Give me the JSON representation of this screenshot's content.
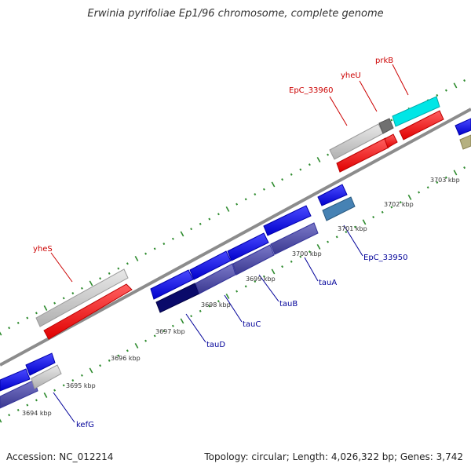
{
  "title": "Erwinia pyrifoliae Ep1/96 chromosome, complete genome",
  "footer": {
    "accession": "Accession: NC_012214",
    "summary": "Topology: circular; Length: 4,026,322 bp; Genes: 3,742"
  },
  "colors": {
    "axis": "#8c8c8c",
    "tick": "#2e8b2e",
    "forward_label": "#cc0000",
    "reverse_label": "#000099"
  },
  "kbp_ticks": [
    {
      "label": "3694 kbp",
      "kbp": 3694
    },
    {
      "label": "3695 kbp",
      "kbp": 3695
    },
    {
      "label": "3696 kbp",
      "kbp": 3696
    },
    {
      "label": "3697 kbp",
      "kbp": 3697
    },
    {
      "label": "3698 kbp",
      "kbp": 3698
    },
    {
      "label": "3699 kbp",
      "kbp": 3699
    },
    {
      "label": "3700 kbp",
      "kbp": 3700
    },
    {
      "label": "3701 kbp",
      "kbp": 3701
    },
    {
      "label": "3702 kbp",
      "kbp": 3702
    },
    {
      "label": "3703 kbp",
      "kbp": 3703
    }
  ],
  "gene_labels": [
    {
      "name": "yheS",
      "strand": "forward"
    },
    {
      "name": "EpC_33960",
      "strand": "forward"
    },
    {
      "name": "yheU",
      "strand": "forward"
    },
    {
      "name": "prkB",
      "strand": "forward"
    },
    {
      "name": "kefG",
      "strand": "reverse"
    },
    {
      "name": "tauD",
      "strand": "reverse"
    },
    {
      "name": "tauC",
      "strand": "reverse"
    },
    {
      "name": "tauB",
      "strand": "reverse"
    },
    {
      "name": "tauA",
      "strand": "reverse"
    },
    {
      "name": "EpC_33950",
      "strand": "reverse"
    }
  ]
}
